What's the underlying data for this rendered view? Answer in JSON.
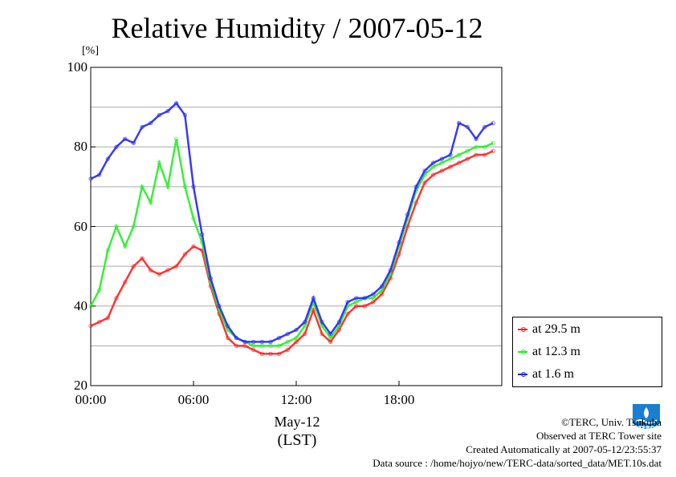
{
  "chart_data": {
    "type": "line",
    "title": "Relative Humidity / 2007-05-12",
    "ylabel": "[%]",
    "xlabel_date": "May-12",
    "xlabel_tz": "(LST)",
    "ylim": [
      20,
      100
    ],
    "yticks": [
      20,
      40,
      60,
      80,
      100
    ],
    "xlim": [
      0,
      24
    ],
    "xticks": [
      {
        "v": 0,
        "label": "00:00"
      },
      {
        "v": 6,
        "label": "06:00"
      },
      {
        "v": 12,
        "label": "12:00"
      },
      {
        "v": 18,
        "label": "18:00"
      }
    ],
    "grid": true,
    "legend_position": "bottom-right",
    "series": [
      {
        "name": "at 29.5 m",
        "color": "#ff2020",
        "x": [
          0,
          0.5,
          1,
          1.5,
          2,
          2.5,
          3,
          3.5,
          4,
          4.5,
          5,
          5.5,
          6,
          6.5,
          7,
          7.5,
          8,
          8.5,
          9,
          9.5,
          10,
          10.5,
          11,
          11.5,
          12,
          12.5,
          13,
          13.5,
          14,
          14.5,
          15,
          15.5,
          16,
          16.5,
          17,
          17.5,
          18,
          18.5,
          19,
          19.5,
          20,
          20.5,
          21,
          21.5,
          22,
          22.5,
          23,
          23.5
        ],
        "y": [
          35,
          36,
          37,
          42,
          46,
          50,
          52,
          49,
          48,
          49,
          50,
          53,
          55,
          54,
          45,
          38,
          32,
          30,
          30,
          29,
          28,
          28,
          28,
          29,
          31,
          33,
          39,
          33,
          31,
          34,
          38,
          40,
          40,
          41,
          43,
          47,
          53,
          60,
          66,
          71,
          73,
          74,
          75,
          76,
          77,
          78,
          78,
          79
        ]
      },
      {
        "name": "at 12.3 m",
        "color": "#22ee22",
        "x": [
          0,
          0.5,
          1,
          1.5,
          2,
          2.5,
          3,
          3.5,
          4,
          4.5,
          5,
          5.5,
          6,
          6.5,
          7,
          7.5,
          8,
          8.5,
          9,
          9.5,
          10,
          10.5,
          11,
          11.5,
          12,
          12.5,
          13,
          13.5,
          14,
          14.5,
          15,
          15.5,
          16,
          16.5,
          17,
          17.5,
          18,
          18.5,
          19,
          19.5,
          20,
          20.5,
          21,
          21.5,
          22,
          22.5,
          23,
          23.5
        ],
        "y": [
          40,
          44,
          54,
          60,
          55,
          60,
          70,
          66,
          76,
          70,
          82,
          70,
          62,
          56,
          46,
          39,
          34,
          32,
          31,
          30,
          30,
          30,
          30,
          31,
          32,
          35,
          41,
          35,
          32,
          35,
          40,
          41,
          42,
          42,
          44,
          48,
          55,
          62,
          69,
          73,
          75,
          76,
          77,
          78,
          79,
          80,
          80,
          81
        ]
      },
      {
        "name": "at 1.6 m",
        "color": "#2222ff",
        "x": [
          0,
          0.5,
          1,
          1.5,
          2,
          2.5,
          3,
          3.5,
          4,
          4.5,
          5,
          5.5,
          6,
          6.5,
          7,
          7.5,
          8,
          8.5,
          9,
          9.5,
          10,
          10.5,
          11,
          11.5,
          12,
          12.5,
          13,
          13.5,
          14,
          14.5,
          15,
          15.5,
          16,
          16.5,
          17,
          17.5,
          18,
          18.5,
          19,
          19.5,
          20,
          20.5,
          21,
          21.5,
          22,
          22.5,
          23,
          23.5
        ],
        "y": [
          72,
          73,
          77,
          80,
          82,
          81,
          85,
          86,
          88,
          89,
          91,
          88,
          70,
          58,
          47,
          40,
          35,
          32,
          31,
          31,
          31,
          31,
          32,
          33,
          34,
          36,
          42,
          36,
          33,
          36,
          41,
          42,
          42,
          43,
          45,
          49,
          56,
          63,
          70,
          74,
          76,
          77,
          78,
          86,
          85,
          82,
          85,
          86
        ]
      }
    ]
  },
  "credits": {
    "line1": "©TERC, Univ. Tsukuba",
    "line2": "Observed at TERC Tower site",
    "line3": "Created Automatically at 2007-05-12/23:55:37",
    "line4": "Data source : /home/hojyo/new/TERC-data/sorted_data/MET.10s.dat"
  },
  "logo": {
    "text": "TERC",
    "color": "#1a7fd0"
  }
}
